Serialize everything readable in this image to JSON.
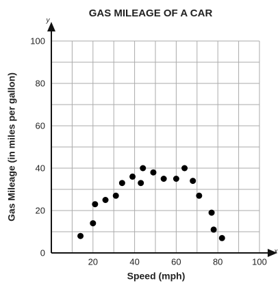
{
  "chart_data": {
    "type": "scatter",
    "title": "GAS MILEAGE OF A CAR",
    "x_label": "Speed (mph)",
    "y_label": "Gas Mileage (in miles per gallon)",
    "axis_letters": {
      "x": "x",
      "y": "y"
    },
    "x": [
      14,
      20,
      21,
      26,
      31,
      34,
      39,
      43,
      44,
      49,
      54,
      60,
      64,
      68,
      71,
      77,
      78,
      82
    ],
    "values": [
      8,
      14,
      23,
      25,
      27,
      33,
      36,
      33,
      40,
      38,
      35,
      35,
      40,
      34,
      27,
      19,
      11,
      7
    ],
    "color": "#000000",
    "xlim": [
      0,
      100
    ],
    "ylim": [
      0,
      100
    ],
    "xticks": [
      20,
      40,
      60,
      80,
      100
    ],
    "yticks": [
      0,
      20,
      40,
      60,
      80,
      100
    ],
    "xgrid_minor": [
      10,
      30,
      50,
      70,
      90
    ],
    "ygrid_minor": [
      10,
      30,
      50,
      70,
      90
    ],
    "grid": true
  }
}
